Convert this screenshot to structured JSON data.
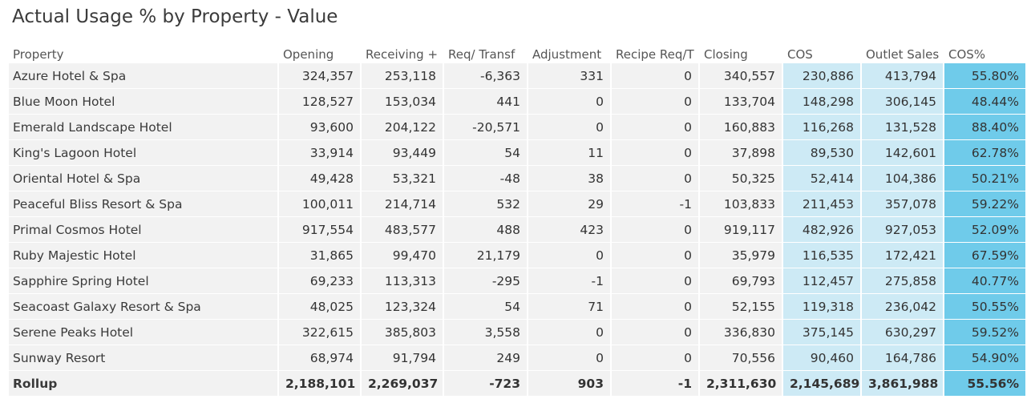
{
  "title": "Actual Usage % by Property - Value",
  "columns": [
    "Property",
    "Opening",
    "Receiving +",
    "Req/ Transf",
    "Adjustment",
    "Recipe Req/T",
    "Closing",
    "COS",
    "Outlet Sales",
    "COS%"
  ],
  "rows": [
    [
      "Azure Hotel & Spa",
      "324,357",
      "253,118",
      "-6,363",
      "331",
      "0",
      "340,557",
      "230,886",
      "413,794",
      "55.80%"
    ],
    [
      "Blue Moon Hotel",
      "128,527",
      "153,034",
      "441",
      "0",
      "0",
      "133,704",
      "148,298",
      "306,145",
      "48.44%"
    ],
    [
      "Emerald Landscape Hotel",
      "93,600",
      "204,122",
      "-20,571",
      "0",
      "0",
      "160,883",
      "116,268",
      "131,528",
      "88.40%"
    ],
    [
      "King's Lagoon Hotel",
      "33,914",
      "93,449",
      "54",
      "11",
      "0",
      "37,898",
      "89,530",
      "142,601",
      "62.78%"
    ],
    [
      "Oriental Hotel & Spa",
      "49,428",
      "53,321",
      "-48",
      "38",
      "0",
      "50,325",
      "52,414",
      "104,386",
      "50.21%"
    ],
    [
      "Peaceful Bliss Resort & Spa",
      "100,011",
      "214,714",
      "532",
      "29",
      "-1",
      "103,833",
      "211,453",
      "357,078",
      "59.22%"
    ],
    [
      "Primal Cosmos Hotel",
      "917,554",
      "483,577",
      "488",
      "423",
      "0",
      "919,117",
      "482,926",
      "927,053",
      "52.09%"
    ],
    [
      "Ruby Majestic Hotel",
      "31,865",
      "99,470",
      "21,179",
      "0",
      "0",
      "35,979",
      "116,535",
      "172,421",
      "67.59%"
    ],
    [
      "Sapphire Spring Hotel",
      "69,233",
      "113,313",
      "-295",
      "-1",
      "0",
      "69,793",
      "112,457",
      "275,858",
      "40.77%"
    ],
    [
      "Seacoast Galaxy Resort & Spa",
      "48,025",
      "123,324",
      "54",
      "71",
      "0",
      "52,155",
      "119,318",
      "236,042",
      "50.55%"
    ],
    [
      "Serene Peaks Hotel",
      "322,615",
      "385,803",
      "3,558",
      "0",
      "0",
      "336,830",
      "375,145",
      "630,297",
      "59.52%"
    ],
    [
      "Sunway Resort",
      "68,974",
      "91,794",
      "249",
      "0",
      "0",
      "70,556",
      "90,460",
      "164,786",
      "54.90%"
    ]
  ],
  "rollup": [
    "Rollup",
    "2,188,101",
    "2,269,037",
    "-723",
    "903",
    "-1",
    "2,311,630",
    "2,145,689",
    "3,861,988",
    "55.56%"
  ]
}
